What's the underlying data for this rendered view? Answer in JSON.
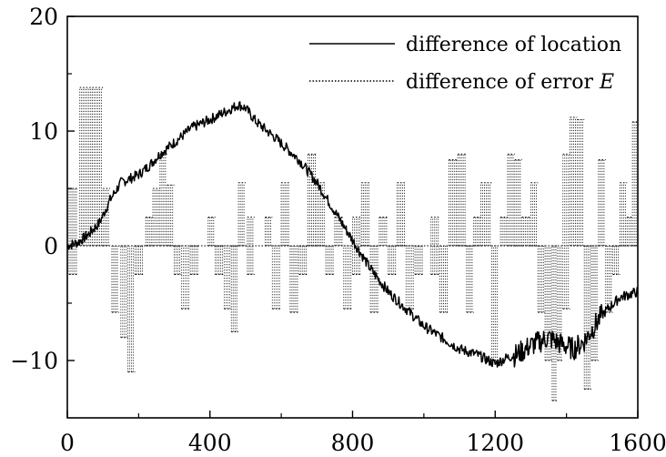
{
  "chart_data": {
    "type": "line",
    "title": "",
    "xlabel": "",
    "ylabel": "",
    "xlim": [
      0,
      1600
    ],
    "ylim": [
      -15,
      20
    ],
    "grid": false,
    "legend_position": "top-right",
    "x_ticks": [
      {
        "value": 0,
        "label": "0"
      },
      {
        "value": 400,
        "label": "400"
      },
      {
        "value": 800,
        "label": "800"
      },
      {
        "value": 1200,
        "label": "1200"
      },
      {
        "value": 1600,
        "label": "1600"
      }
    ],
    "y_ticks": [
      {
        "value": 20,
        "label": "20"
      },
      {
        "value": 10,
        "label": "10"
      },
      {
        "value": 0,
        "label": "0"
      },
      {
        "value": -10,
        "label": "−10"
      }
    ],
    "series": [
      {
        "name": "difference of location",
        "style": "solid",
        "color": "#000000",
        "x": [
          0,
          30,
          60,
          90,
          120,
          150,
          200,
          230,
          260,
          300,
          350,
          400,
          450,
          480,
          500,
          530,
          580,
          650,
          700,
          750,
          800,
          850,
          900,
          950,
          1000,
          1050,
          1100,
          1150,
          1200,
          1230,
          1260,
          1300,
          1350,
          1380,
          1420,
          1450,
          1500,
          1550,
          1600
        ],
        "y": [
          0,
          0.3,
          1,
          2,
          4,
          5.5,
          6.2,
          7,
          8,
          9,
          10.3,
          11,
          11.8,
          12.3,
          12,
          10.8,
          9.5,
          7.5,
          5.5,
          3,
          0.5,
          -2,
          -4,
          -5.5,
          -7,
          -8,
          -9,
          -9.5,
          -10.3,
          -9.8,
          -9.5,
          -8.7,
          -8,
          -8.5,
          -9,
          -8.3,
          -6,
          -4.5,
          -4
        ]
      },
      {
        "name": "difference of error E",
        "style": "dotted",
        "color": "#000000",
        "bursts": [
          {
            "x0": 5,
            "x1": 30,
            "lo": -2.5,
            "hi": 5
          },
          {
            "x0": 35,
            "x1": 70,
            "lo": 0,
            "hi": 13.8
          },
          {
            "x0": 70,
            "x1": 100,
            "lo": 0,
            "hi": 13.8
          },
          {
            "x0": 100,
            "x1": 120,
            "lo": 0,
            "hi": 5
          },
          {
            "x0": 125,
            "x1": 145,
            "lo": -5.8,
            "hi": 0
          },
          {
            "x0": 150,
            "x1": 170,
            "lo": -8,
            "hi": 0
          },
          {
            "x0": 170,
            "x1": 190,
            "lo": -11,
            "hi": 0
          },
          {
            "x0": 190,
            "x1": 215,
            "lo": -2.5,
            "hi": 0
          },
          {
            "x0": 220,
            "x1": 240,
            "lo": 0,
            "hi": 2.5
          },
          {
            "x0": 240,
            "x1": 260,
            "lo": 0,
            "hi": 5
          },
          {
            "x0": 260,
            "x1": 280,
            "lo": 0,
            "hi": 8
          },
          {
            "x0": 280,
            "x1": 300,
            "lo": 0,
            "hi": 5.3
          },
          {
            "x0": 300,
            "x1": 320,
            "lo": -2.5,
            "hi": 0
          },
          {
            "x0": 320,
            "x1": 345,
            "lo": -5.5,
            "hi": 0
          },
          {
            "x0": 345,
            "x1": 370,
            "lo": -2.5,
            "hi": 0
          },
          {
            "x0": 395,
            "x1": 415,
            "lo": 0,
            "hi": 2.5
          },
          {
            "x0": 415,
            "x1": 440,
            "lo": -2.5,
            "hi": 0
          },
          {
            "x0": 440,
            "x1": 460,
            "lo": -5.5,
            "hi": 0
          },
          {
            "x0": 460,
            "x1": 480,
            "lo": -7.5,
            "hi": 0
          },
          {
            "x0": 480,
            "x1": 500,
            "lo": 0,
            "hi": 5.5
          },
          {
            "x0": 505,
            "x1": 525,
            "lo": -2.5,
            "hi": 2.5
          },
          {
            "x0": 555,
            "x1": 575,
            "lo": 0,
            "hi": 2.5
          },
          {
            "x0": 575,
            "x1": 600,
            "lo": -5.5,
            "hi": 0
          },
          {
            "x0": 600,
            "x1": 625,
            "lo": 0,
            "hi": 5.5
          },
          {
            "x0": 625,
            "x1": 650,
            "lo": -5.8,
            "hi": 0
          },
          {
            "x0": 650,
            "x1": 675,
            "lo": -2.5,
            "hi": 0
          },
          {
            "x0": 675,
            "x1": 700,
            "lo": 0,
            "hi": 8
          },
          {
            "x0": 700,
            "x1": 725,
            "lo": 0,
            "hi": 5.5
          },
          {
            "x0": 725,
            "x1": 750,
            "lo": -2.5,
            "hi": 0
          },
          {
            "x0": 750,
            "x1": 775,
            "lo": 0,
            "hi": 2.5
          },
          {
            "x0": 775,
            "x1": 800,
            "lo": -5.5,
            "hi": 0
          },
          {
            "x0": 800,
            "x1": 825,
            "lo": -2.5,
            "hi": 2.5
          },
          {
            "x0": 825,
            "x1": 850,
            "lo": 0,
            "hi": 5.5
          },
          {
            "x0": 850,
            "x1": 875,
            "lo": -5.8,
            "hi": 0
          },
          {
            "x0": 875,
            "x1": 900,
            "lo": 0,
            "hi": 2.5
          },
          {
            "x0": 900,
            "x1": 925,
            "lo": -2.5,
            "hi": 0
          },
          {
            "x0": 925,
            "x1": 950,
            "lo": 0,
            "hi": 5.5
          },
          {
            "x0": 950,
            "x1": 975,
            "lo": -5.5,
            "hi": 0
          },
          {
            "x0": 975,
            "x1": 1000,
            "lo": -2.5,
            "hi": 0
          },
          {
            "x0": 1020,
            "x1": 1045,
            "lo": -2.5,
            "hi": 2.5
          },
          {
            "x0": 1045,
            "x1": 1070,
            "lo": -5.8,
            "hi": 0
          },
          {
            "x0": 1070,
            "x1": 1095,
            "lo": 0,
            "hi": 7.5
          },
          {
            "x0": 1095,
            "x1": 1120,
            "lo": 0,
            "hi": 8
          },
          {
            "x0": 1120,
            "x1": 1140,
            "lo": -5.8,
            "hi": 0
          },
          {
            "x0": 1140,
            "x1": 1160,
            "lo": 0,
            "hi": 2.5
          },
          {
            "x0": 1160,
            "x1": 1190,
            "lo": 0,
            "hi": 5.5
          },
          {
            "x0": 1190,
            "x1": 1210,
            "lo": -10,
            "hi": 0
          },
          {
            "x0": 1215,
            "x1": 1235,
            "lo": 0,
            "hi": 2.5
          },
          {
            "x0": 1235,
            "x1": 1255,
            "lo": 0,
            "hi": 8
          },
          {
            "x0": 1255,
            "x1": 1275,
            "lo": 0,
            "hi": 7.5
          },
          {
            "x0": 1275,
            "x1": 1300,
            "lo": 0,
            "hi": 2.5
          },
          {
            "x0": 1300,
            "x1": 1320,
            "lo": 0,
            "hi": 5.5
          },
          {
            "x0": 1320,
            "x1": 1340,
            "lo": -5.8,
            "hi": 0
          },
          {
            "x0": 1340,
            "x1": 1360,
            "lo": -10,
            "hi": 0
          },
          {
            "x0": 1360,
            "x1": 1375,
            "lo": -13.5,
            "hi": 0
          },
          {
            "x0": 1375,
            "x1": 1390,
            "lo": -10,
            "hi": 0
          },
          {
            "x0": 1390,
            "x1": 1410,
            "lo": -5.5,
            "hi": 8
          },
          {
            "x0": 1410,
            "x1": 1430,
            "lo": 0,
            "hi": 11.2
          },
          {
            "x0": 1430,
            "x1": 1450,
            "lo": 0,
            "hi": 11
          },
          {
            "x0": 1450,
            "x1": 1470,
            "lo": -12.5,
            "hi": 0
          },
          {
            "x0": 1470,
            "x1": 1490,
            "lo": -10,
            "hi": 0
          },
          {
            "x0": 1490,
            "x1": 1510,
            "lo": 0,
            "hi": 7.5
          },
          {
            "x0": 1510,
            "x1": 1530,
            "lo": -5.8,
            "hi": 0
          },
          {
            "x0": 1530,
            "x1": 1550,
            "lo": -2.5,
            "hi": 0
          },
          {
            "x0": 1550,
            "x1": 1570,
            "lo": 0,
            "hi": 5.5
          },
          {
            "x0": 1570,
            "x1": 1585,
            "lo": 0,
            "hi": 2.5
          },
          {
            "x0": 1585,
            "x1": 1600,
            "lo": 0,
            "hi": 10.8
          }
        ]
      }
    ]
  }
}
